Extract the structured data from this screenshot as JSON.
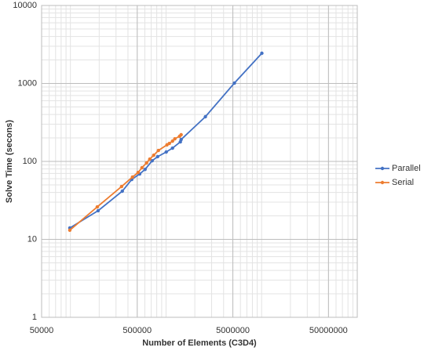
{
  "chart_data": {
    "type": "line",
    "x_label": "Number of Elements (C3D4)",
    "y_label": "Solve Time (secons)",
    "x_scale": "log",
    "y_scale": "log",
    "xlim": [
      50000,
      100000000
    ],
    "xticks": [
      50000,
      500000,
      5000000,
      50000000
    ],
    "ylim": [
      1,
      10000
    ],
    "yticks": [
      1,
      10,
      100,
      1000,
      10000
    ],
    "grid": true,
    "minor_grid": true,
    "legend": "right",
    "series": [
      {
        "name": "Parallel",
        "color": "#4472c4",
        "x": [
          98600,
          195000,
          349000,
          438000,
          530000,
          604000,
          716000,
          817000,
          1005000,
          1169000,
          1412000,
          1439000,
          2580000,
          5190000,
          10050000
        ],
        "values": [
          14,
          23.3,
          41.5,
          58.7,
          69,
          79,
          102,
          115,
          132,
          148,
          178,
          191,
          374,
          1011,
          2440
        ]
      },
      {
        "name": "Serial",
        "color": "#ed7d31",
        "x": [
          98600,
          191000,
          343000,
          446000,
          510000,
          560000,
          627000,
          676000,
          743000,
          832000,
          1023000,
          1083000,
          1169000,
          1237000,
          1386000,
          1439000
        ],
        "values": [
          13.1,
          26.1,
          47.6,
          63,
          72,
          83,
          96,
          107,
          120,
          138,
          163,
          170,
          182,
          195,
          210,
          220
        ]
      }
    ]
  }
}
